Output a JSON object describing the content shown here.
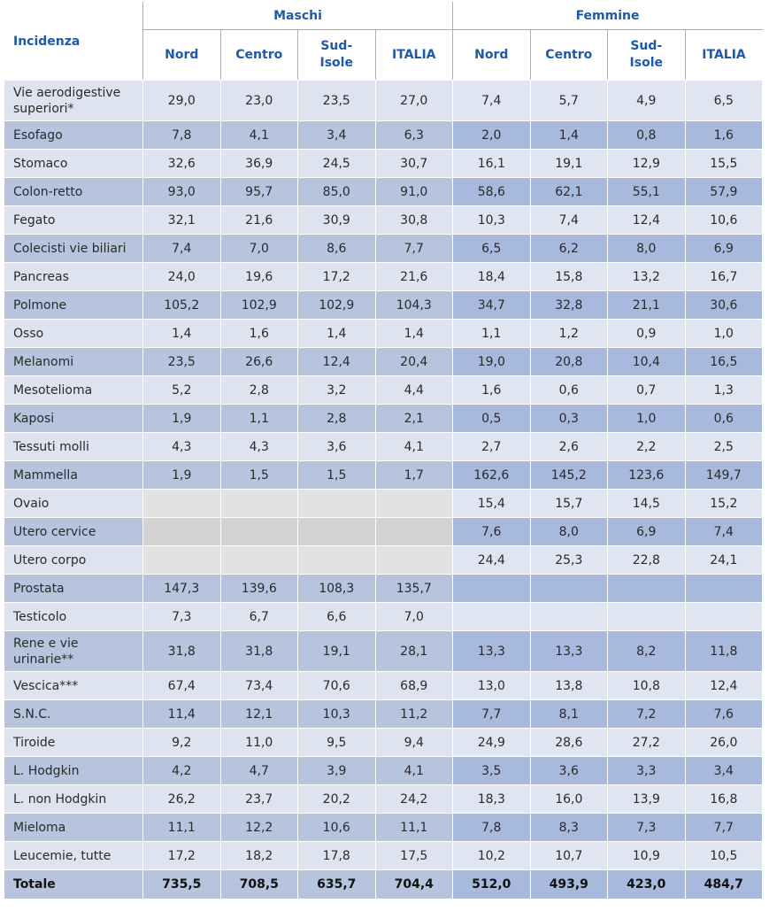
{
  "header": {
    "incidenza": "Incidenza",
    "maschi": "Maschi",
    "femmine": "Femmine",
    "cols": [
      "Nord",
      "Centro",
      "Sud-\nIsole",
      "ITALIA",
      "Nord",
      "Centro",
      "Sud-\nIsole",
      "ITALIA"
    ]
  },
  "rows": [
    {
      "label": "Vie aerodigestive superiori*",
      "values": [
        "29,0",
        "23,0",
        "23,5",
        "27,0",
        "7,4",
        "5,7",
        "4,9",
        "6,5"
      ],
      "tall": true
    },
    {
      "label": "Esofago",
      "values": [
        "7,8",
        "4,1",
        "3,4",
        "6,3",
        "2,0",
        "1,4",
        "0,8",
        "1,6"
      ]
    },
    {
      "label": "Stomaco",
      "values": [
        "32,6",
        "36,9",
        "24,5",
        "30,7",
        "16,1",
        "19,1",
        "12,9",
        "15,5"
      ]
    },
    {
      "label": "Colon-retto",
      "values": [
        "93,0",
        "95,7",
        "85,0",
        "91,0",
        "58,6",
        "62,1",
        "55,1",
        "57,9"
      ]
    },
    {
      "label": "Fegato",
      "values": [
        "32,1",
        "21,6",
        "30,9",
        "30,8",
        "10,3",
        "7,4",
        "12,4",
        "10,6"
      ]
    },
    {
      "label": "Colecisti vie biliari",
      "values": [
        "7,4",
        "7,0",
        "8,6",
        "7,7",
        "6,5",
        "6,2",
        "8,0",
        "6,9"
      ]
    },
    {
      "label": "Pancreas",
      "values": [
        "24,0",
        "19,6",
        "17,2",
        "21,6",
        "18,4",
        "15,8",
        "13,2",
        "16,7"
      ]
    },
    {
      "label": "Polmone",
      "values": [
        "105,2",
        "102,9",
        "102,9",
        "104,3",
        "34,7",
        "32,8",
        "21,1",
        "30,6"
      ]
    },
    {
      "label": "Osso",
      "values": [
        "1,4",
        "1,6",
        "1,4",
        "1,4",
        "1,1",
        "1,2",
        "0,9",
        "1,0"
      ]
    },
    {
      "label": "Melanomi",
      "values": [
        "23,5",
        "26,6",
        "12,4",
        "20,4",
        "19,0",
        "20,8",
        "10,4",
        "16,5"
      ]
    },
    {
      "label": "Mesotelioma",
      "values": [
        "5,2",
        "2,8",
        "3,2",
        "4,4",
        "1,6",
        "0,6",
        "0,7",
        "1,3"
      ]
    },
    {
      "label": "Kaposi",
      "values": [
        "1,9",
        "1,1",
        "2,8",
        "2,1",
        "0,5",
        "0,3",
        "1,0",
        "0,6"
      ]
    },
    {
      "label": "Tessuti molli",
      "values": [
        "4,3",
        "4,3",
        "3,6",
        "4,1",
        "2,7",
        "2,6",
        "2,2",
        "2,5"
      ]
    },
    {
      "label": "Mammella",
      "values": [
        "1,9",
        "1,5",
        "1,5",
        "1,7",
        "162,6",
        "145,2",
        "123,6",
        "149,7"
      ]
    },
    {
      "label": "Ovaio",
      "values": [
        "",
        "",
        "",
        "",
        "15,4",
        "15,7",
        "14,5",
        "15,2"
      ]
    },
    {
      "label": "Utero cervice",
      "values": [
        "",
        "",
        "",
        "",
        "7,6",
        "8,0",
        "6,9",
        "7,4"
      ]
    },
    {
      "label": "Utero corpo",
      "values": [
        "",
        "",
        "",
        "",
        "24,4",
        "25,3",
        "22,8",
        "24,1"
      ]
    },
    {
      "label": "Prostata",
      "values": [
        "147,3",
        "139,6",
        "108,3",
        "135,7",
        "",
        "",
        "",
        ""
      ]
    },
    {
      "label": "Testicolo",
      "values": [
        "7,3",
        "6,7",
        "6,6",
        "7,0",
        "",
        "",
        "",
        ""
      ]
    },
    {
      "label": "Rene e vie urinarie**",
      "values": [
        "31,8",
        "31,8",
        "19,1",
        "28,1",
        "13,3",
        "13,3",
        "8,2",
        "11,8"
      ],
      "tall": true
    },
    {
      "label": "Vescica***",
      "values": [
        "67,4",
        "73,4",
        "70,6",
        "68,9",
        "13,0",
        "13,8",
        "10,8",
        "12,4"
      ]
    },
    {
      "label": "S.N.C.",
      "values": [
        "11,4",
        "12,1",
        "10,3",
        "11,2",
        "7,7",
        "8,1",
        "7,2",
        "7,6"
      ]
    },
    {
      "label": "Tiroide",
      "values": [
        "9,2",
        "11,0",
        "9,5",
        "9,4",
        "24,9",
        "28,6",
        "27,2",
        "26,0"
      ]
    },
    {
      "label": "L. Hodgkin",
      "values": [
        "4,2",
        "4,7",
        "3,9",
        "4,1",
        "3,5",
        "3,6",
        "3,3",
        "3,4"
      ]
    },
    {
      "label": "L. non Hodgkin",
      "values": [
        "26,2",
        "23,7",
        "20,2",
        "24,2",
        "18,3",
        "16,0",
        "13,9",
        "16,8"
      ]
    },
    {
      "label": "Mieloma",
      "values": [
        "11,1",
        "12,2",
        "10,6",
        "11,1",
        "7,8",
        "8,3",
        "7,3",
        "7,7"
      ]
    },
    {
      "label": "Leucemie, tutte",
      "values": [
        "17,2",
        "18,2",
        "17,8",
        "17,5",
        "10,2",
        "10,7",
        "10,9",
        "10,5"
      ]
    }
  ],
  "total": {
    "label": "Totale",
    "values": [
      "735,5",
      "708,5",
      "635,7",
      "704,4",
      "512,0",
      "493,9",
      "423,0",
      "484,7"
    ]
  }
}
